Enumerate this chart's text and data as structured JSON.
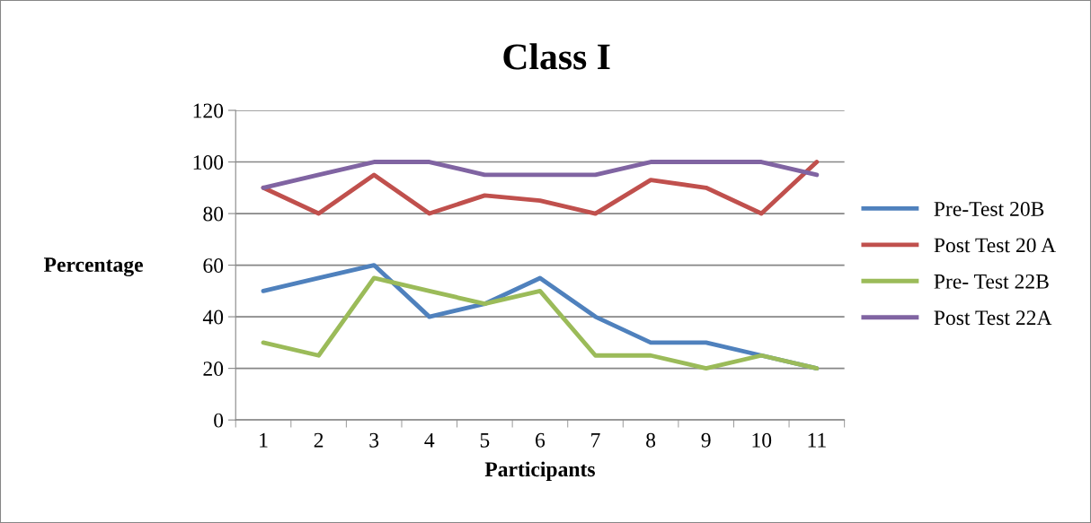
{
  "chart_data": {
    "type": "line",
    "title": "Class I",
    "xlabel": "Participants",
    "ylabel": "Percentage",
    "categories": [
      "1",
      "2",
      "3",
      "4",
      "5",
      "6",
      "7",
      "8",
      "9",
      "10",
      "11"
    ],
    "series": [
      {
        "name": "Pre-Test 20B",
        "color": "#4f81bd",
        "values": [
          50,
          55,
          60,
          40,
          45,
          55,
          40,
          30,
          30,
          25,
          20
        ]
      },
      {
        "name": "Post Test 20 A",
        "color": "#c0504d",
        "values": [
          90,
          80,
          95,
          80,
          87,
          85,
          80,
          93,
          90,
          80,
          100
        ]
      },
      {
        "name": "Pre- Test 22B",
        "color": "#9bbb59",
        "values": [
          30,
          25,
          55,
          50,
          45,
          50,
          25,
          25,
          20,
          25,
          20
        ]
      },
      {
        "name": "Post Test 22A",
        "color": "#8064a2",
        "values": [
          90,
          95,
          100,
          100,
          95,
          95,
          95,
          100,
          100,
          100,
          95
        ]
      }
    ],
    "ylim": [
      0,
      120
    ],
    "yticks": [
      0,
      20,
      40,
      60,
      80,
      100,
      120
    ],
    "grid": "y",
    "legend": "right",
    "marker": "none",
    "line_style": "solid"
  }
}
